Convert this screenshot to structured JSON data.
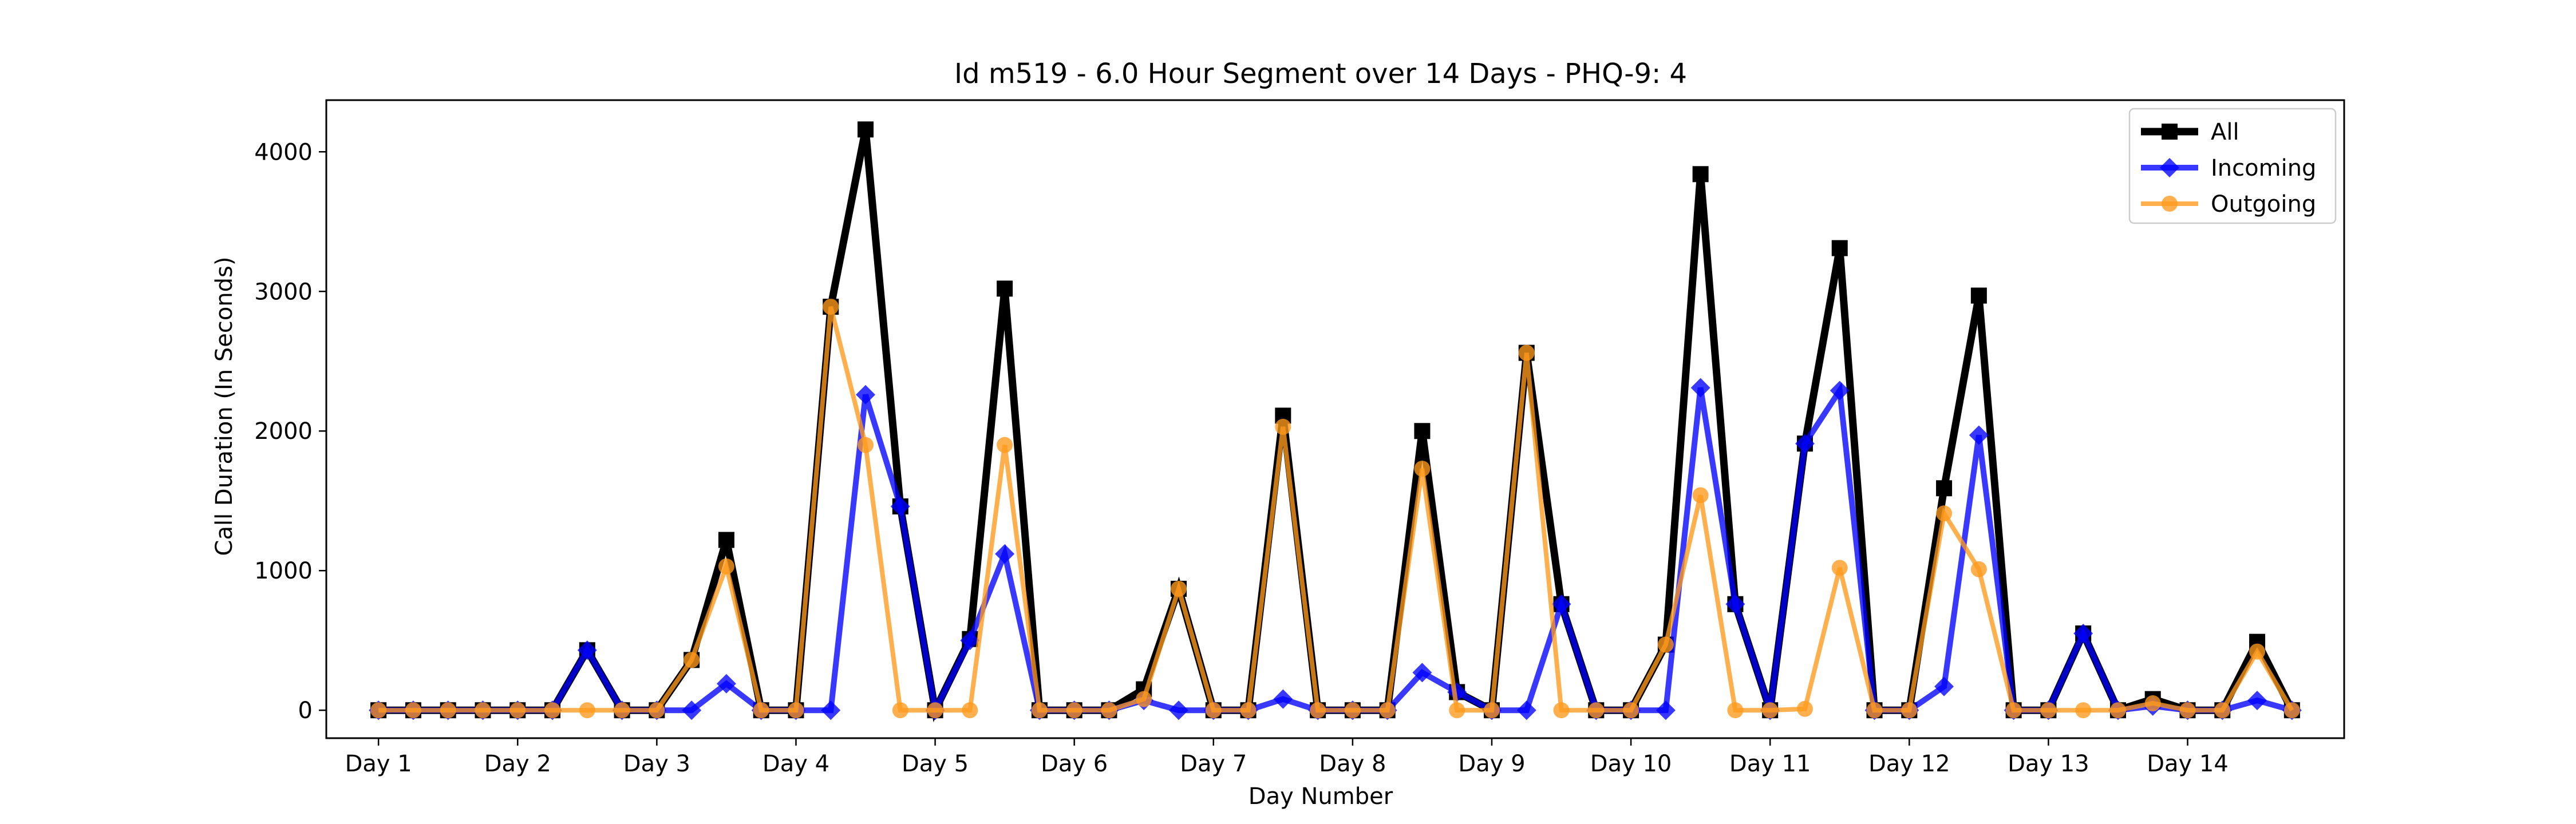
{
  "chart_data": {
    "type": "line",
    "title": "Id m519 - 6.0 Hour Segment over 14 Days - PHQ-9: 4",
    "xlabel": "Day Number",
    "ylabel": "Call Duration (In Seconds)",
    "ylim": [
      -200,
      4370
    ],
    "yticks": [
      0,
      1000,
      2000,
      3000,
      4000
    ],
    "xlim": [
      -1.5,
      56.5
    ],
    "xtick_positions": [
      0,
      4,
      8,
      12,
      16,
      20,
      24,
      28,
      32,
      36,
      40,
      44,
      48,
      52
    ],
    "xtick_labels": [
      "Day 1",
      "Day 2",
      "Day 3",
      "Day 4",
      "Day 5",
      "Day 6",
      "Day 7",
      "Day 8",
      "Day 9",
      "Day 10",
      "Day 11",
      "Day 12",
      "Day 13",
      "Day 14"
    ],
    "grid": false,
    "legend_position": "top-right",
    "series": [
      {
        "name": "All",
        "color": "#000000",
        "marker": "square",
        "values": [
          0,
          0,
          0,
          0,
          0,
          0,
          430,
          0,
          0,
          360,
          1220,
          0,
          0,
          2890,
          4160,
          1460,
          0,
          510,
          3020,
          0,
          0,
          0,
          150,
          870,
          0,
          0,
          2110,
          0,
          0,
          0,
          2000,
          130,
          0,
          2560,
          760,
          0,
          0,
          470,
          3840,
          760,
          0,
          1910,
          3310,
          0,
          0,
          1590,
          2970,
          0,
          0,
          550,
          0,
          80,
          0,
          0,
          490,
          0
        ]
      },
      {
        "name": "Incoming",
        "color": "#0000ff",
        "marker": "diamond",
        "values": [
          0,
          0,
          0,
          0,
          0,
          0,
          430,
          0,
          0,
          0,
          190,
          0,
          0,
          0,
          2260,
          1460,
          0,
          500,
          1120,
          0,
          0,
          0,
          70,
          0,
          0,
          0,
          80,
          0,
          0,
          0,
          270,
          130,
          0,
          0,
          760,
          0,
          0,
          0,
          2310,
          760,
          0,
          1910,
          2290,
          0,
          0,
          170,
          1970,
          0,
          0,
          550,
          0,
          30,
          0,
          0,
          70,
          0
        ]
      },
      {
        "name": "Outgoing",
        "color": "#ff9a1c",
        "marker": "circle",
        "values": [
          0,
          0,
          0,
          0,
          0,
          0,
          0,
          0,
          0,
          360,
          1030,
          0,
          0,
          2890,
          1900,
          0,
          0,
          0,
          1900,
          0,
          0,
          0,
          80,
          870,
          0,
          0,
          2030,
          0,
          0,
          0,
          1730,
          0,
          0,
          2560,
          0,
          0,
          0,
          470,
          1540,
          0,
          0,
          10,
          1020,
          0,
          0,
          1410,
          1010,
          0,
          0,
          0,
          0,
          50,
          0,
          0,
          420,
          0
        ]
      }
    ]
  }
}
